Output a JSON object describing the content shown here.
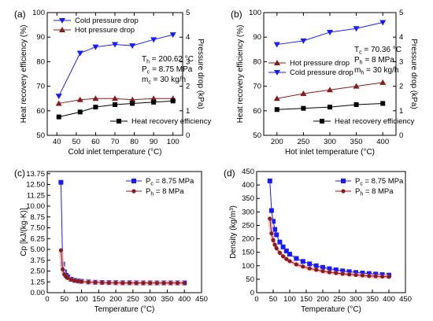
{
  "figure": {
    "colors": {
      "red_series": "#8b1a1a",
      "blue_series": "#1a1aff",
      "black_series": "#000000",
      "pink_band": "#f4b8b8"
    }
  },
  "chart_data": [
    {
      "panel": "(a)",
      "type": "line",
      "xlabel": "Cold inlet temperature (°C)",
      "ylabel": "Heat recovery efficiency (%)",
      "y2label": "Pressure drop (kPa)",
      "xlim": [
        35,
        105
      ],
      "ylim": [
        50,
        100
      ],
      "y2lim": [
        0,
        5
      ],
      "xticks": [
        40,
        50,
        60,
        70,
        80,
        90,
        100
      ],
      "yticks": [
        50,
        60,
        70,
        80,
        90,
        100
      ],
      "y2ticks": [
        0,
        1,
        2,
        3,
        4,
        5
      ],
      "x": [
        41,
        52,
        60,
        70,
        79,
        90,
        100
      ],
      "series": [
        {
          "name": "Cold pressure drop",
          "axis": "right",
          "marker": "triangle-down",
          "color": "#1a1aff",
          "values": [
            1.6,
            3.35,
            3.6,
            3.7,
            3.65,
            3.9,
            4.1
          ]
        },
        {
          "name": "Hot pressure drop",
          "axis": "right",
          "marker": "triangle-up",
          "color": "#8b1a1a",
          "values": [
            1.3,
            1.45,
            1.5,
            1.5,
            1.45,
            1.5,
            1.5
          ]
        },
        {
          "name": "Heat recovery efficiency",
          "axis": "left",
          "marker": "square",
          "color": "#000000",
          "values": [
            57.5,
            59.5,
            61.5,
            62.5,
            63.0,
            63.5,
            64.0
          ]
        }
      ],
      "legend_top": [
        "Cold pressure drop",
        "Hot pressure drop"
      ],
      "legend_bottom": "Heat recovery efficiency",
      "annotations": [
        {
          "main": "T",
          "sub": "h",
          "rest": " = 200.62 °C"
        },
        {
          "main": "P",
          "sub": "c",
          "rest": " = 8.75 MPa"
        },
        {
          "main": "m",
          "sub": "c",
          "rest": " = 30 kg/h"
        }
      ]
    },
    {
      "panel": "(b)",
      "type": "line",
      "xlabel": "Hot inlet temperature (°C)",
      "ylabel": "Heat recovery efficiency (%)",
      "y2label": "Pressure drop (kPa)",
      "xlim": [
        175,
        425
      ],
      "ylim": [
        50,
        100
      ],
      "y2lim": [
        0,
        5
      ],
      "xticks": [
        200,
        250,
        300,
        350,
        400
      ],
      "yticks": [
        50,
        60,
        70,
        80,
        90,
        100
      ],
      "y2ticks": [
        0,
        1,
        2,
        3,
        4,
        5
      ],
      "x": [
        200,
        250,
        300,
        350,
        400
      ],
      "series": [
        {
          "name": "Cold pressure drop",
          "axis": "right",
          "marker": "triangle-down",
          "color": "#1a1aff",
          "values": [
            3.7,
            3.85,
            4.2,
            4.35,
            4.6
          ]
        },
        {
          "name": "Hot pressure drop",
          "axis": "right",
          "marker": "triangle-up",
          "color": "#8b1a1a",
          "values": [
            1.5,
            1.7,
            1.85,
            2.0,
            2.15
          ]
        },
        {
          "name": "Heat recovery efficiency",
          "axis": "left",
          "marker": "square",
          "color": "#000000",
          "values": [
            60.5,
            61.0,
            61.5,
            62.5,
            63.0
          ]
        }
      ],
      "legend_top": [
        "Hot pressure drop",
        "Cold pressure drop"
      ],
      "legend_bottom": "Heat recovery efficiency",
      "annotations": [
        {
          "main": "T",
          "sub": "c",
          "rest": " = 70.36 °C"
        },
        {
          "main": "P",
          "sub": "h",
          "rest": " = 8 MPa"
        },
        {
          "main": "m",
          "sub": "h",
          "rest": " = 30 kg/h"
        }
      ]
    },
    {
      "panel": "(c)",
      "type": "line",
      "xlabel": "Temperature (°C)",
      "ylabel": "Cp [kJ/(kg·K)]",
      "xlim": [
        0,
        450
      ],
      "ylim": [
        0,
        14
      ],
      "xticks": [
        0,
        50,
        100,
        150,
        200,
        250,
        300,
        350,
        400,
        450
      ],
      "yticks": [
        0,
        1.25,
        2.5,
        3.75,
        5,
        6.25,
        7.5,
        8.75,
        10,
        11.25,
        12.5,
        13.75
      ],
      "ytick_labels": [
        "0.00",
        "1.25",
        "2.50",
        "3.75",
        "5.00",
        "6.25",
        "7.50",
        "8.75",
        "10.00",
        "11.25",
        "12.50",
        "13.75"
      ],
      "x": [
        40,
        45,
        50,
        55,
        60,
        70,
        80,
        90,
        100,
        120,
        140,
        160,
        180,
        200,
        220,
        240,
        260,
        280,
        300,
        320,
        340,
        360,
        380,
        400
      ],
      "series": [
        {
          "name": "Pc = 8.75 MPa",
          "label_main": "P",
          "label_sub": "c",
          "label_rest": " = 8.75 MPa",
          "marker": "square",
          "color": "#1a1aff",
          "values": [
            12.75,
            3.3,
            2.4,
            2.0,
            1.8,
            1.55,
            1.42,
            1.35,
            1.3,
            1.24,
            1.2,
            1.18,
            1.16,
            1.15,
            1.14,
            1.14,
            1.13,
            1.13,
            1.13,
            1.13,
            1.13,
            1.13,
            1.13,
            1.13
          ]
        },
        {
          "name": "Ph = 8 MPa",
          "label_main": "P",
          "label_sub": "h",
          "label_rest": " = 8 MPa",
          "marker": "circle",
          "color": "#8b1a1a",
          "values": [
            4.9,
            2.7,
            2.1,
            1.85,
            1.7,
            1.5,
            1.4,
            1.33,
            1.28,
            1.22,
            1.19,
            1.17,
            1.15,
            1.14,
            1.13,
            1.13,
            1.12,
            1.12,
            1.12,
            1.12,
            1.12,
            1.12,
            1.12,
            1.12
          ]
        }
      ]
    },
    {
      "panel": "(d)",
      "type": "line",
      "xlabel": "Temperature (°C)",
      "ylabel": "Density (kg/m³)",
      "xlim": [
        0,
        450
      ],
      "ylim": [
        0,
        450
      ],
      "xticks": [
        0,
        50,
        100,
        150,
        200,
        250,
        300,
        350,
        400,
        450
      ],
      "yticks": [
        0,
        50,
        100,
        150,
        200,
        250,
        300,
        350,
        400,
        450
      ],
      "x": [
        40,
        45,
        50,
        55,
        60,
        70,
        80,
        90,
        100,
        120,
        140,
        160,
        180,
        200,
        220,
        240,
        260,
        280,
        300,
        320,
        340,
        360,
        380,
        400
      ],
      "series": [
        {
          "name": "Pc = 8.75 MPa",
          "label_main": "P",
          "label_sub": "c",
          "label_rest": " = 8.75 MPa",
          "marker": "square",
          "color": "#1a1aff",
          "values": [
            415,
            305,
            265,
            235,
            215,
            188,
            170,
            155,
            143,
            127,
            116,
            107,
            100,
            94,
            89,
            85,
            81,
            78,
            75,
            73,
            71,
            69,
            67,
            65
          ]
        },
        {
          "name": "Ph = 8 MPa",
          "label_main": "P",
          "label_sub": "h",
          "label_rest": " = 8 MPa",
          "marker": "circle",
          "color": "#8b1a1a",
          "values": [
            275,
            220,
            195,
            178,
            165,
            148,
            135,
            125,
            117,
            105,
            97,
            90,
            85,
            80,
            76,
            73,
            70,
            68,
            66,
            64,
            62,
            61,
            60,
            59
          ]
        }
      ]
    }
  ]
}
